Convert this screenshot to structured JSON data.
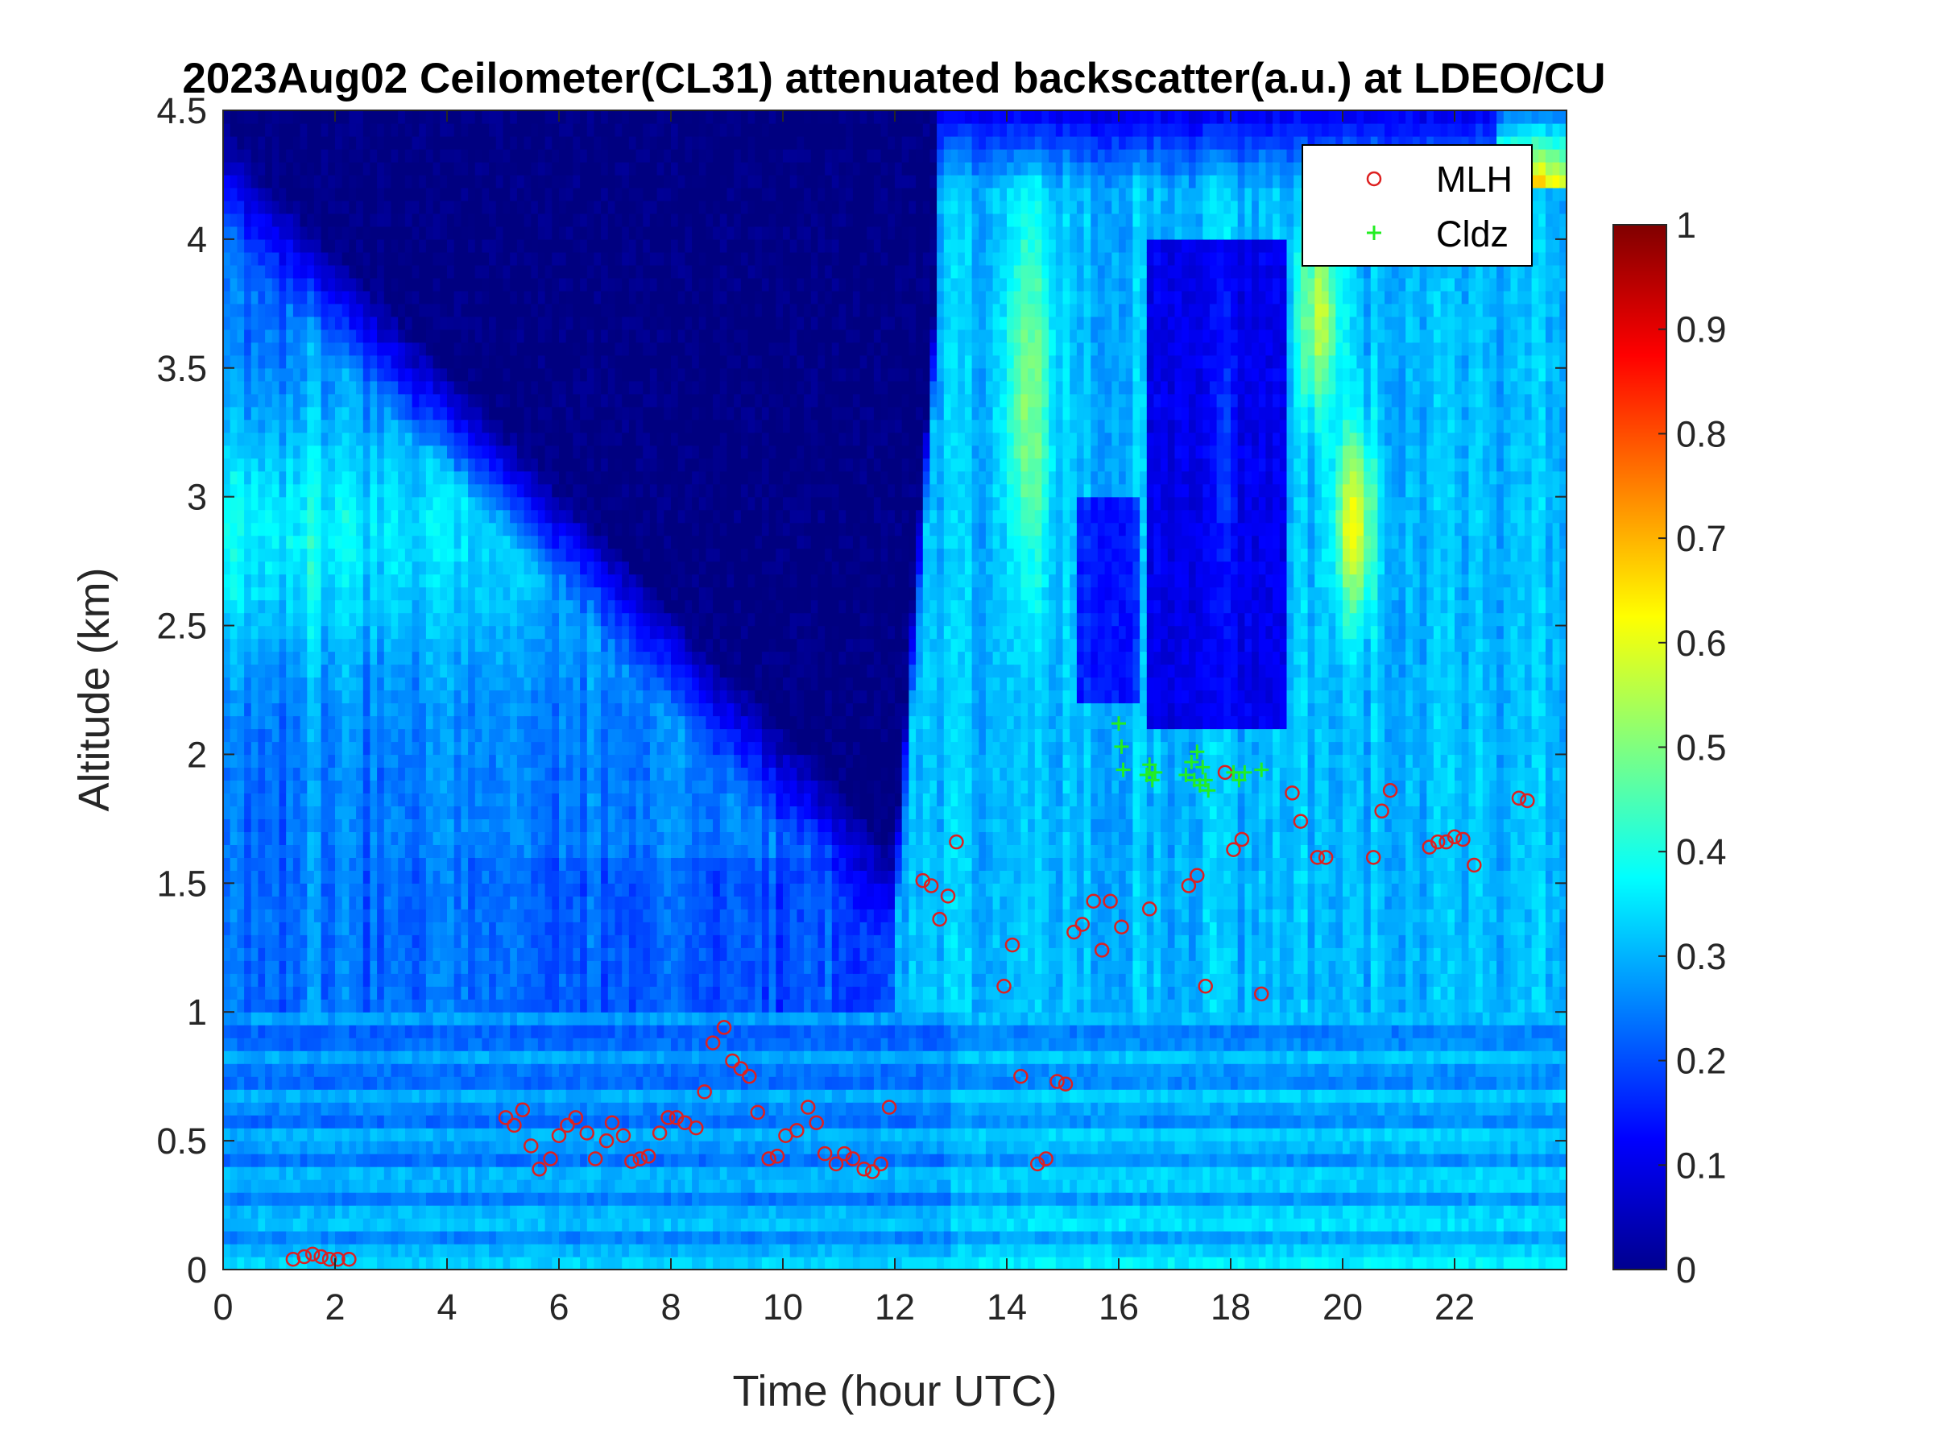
{
  "chart_data": {
    "type": "heatmap",
    "title": "2023Aug02 Ceilometer(CL31) attenuated backscatter(a.u.) at LDEO/CU",
    "xlabel": "Time (hour UTC)",
    "ylabel": "Altitude (km)",
    "xlim": [
      0,
      24
    ],
    "ylim": [
      0,
      4.5
    ],
    "x_ticks": [
      "0",
      "2",
      "4",
      "6",
      "8",
      "10",
      "12",
      "14",
      "16",
      "18",
      "20",
      "22"
    ],
    "y_ticks": [
      "0",
      "0.5",
      "1",
      "1.5",
      "2",
      "2.5",
      "3",
      "3.5",
      "4",
      "4.5"
    ],
    "colormap": "jet",
    "clim": [
      0,
      1
    ],
    "colorbar_ticks": [
      "0",
      "0.1",
      "0.2",
      "0.3",
      "0.4",
      "0.5",
      "0.6",
      "0.7",
      "0.8",
      "0.9",
      "1"
    ],
    "grid": false,
    "legend_position": "top-right",
    "colors": {
      "MLH": "#dd2020",
      "Cldz": "#22ee22"
    },
    "series": [
      {
        "name": "MLH",
        "marker": "circle",
        "points": [
          [
            1.25,
            0.04
          ],
          [
            1.45,
            0.05
          ],
          [
            1.6,
            0.06
          ],
          [
            1.75,
            0.05
          ],
          [
            1.9,
            0.04
          ],
          [
            2.05,
            0.04
          ],
          [
            2.25,
            0.04
          ],
          [
            5.05,
            0.59
          ],
          [
            5.2,
            0.56
          ],
          [
            5.35,
            0.62
          ],
          [
            5.5,
            0.48
          ],
          [
            5.65,
            0.39
          ],
          [
            5.85,
            0.43
          ],
          [
            6.0,
            0.52
          ],
          [
            6.15,
            0.56
          ],
          [
            6.3,
            0.59
          ],
          [
            6.5,
            0.53
          ],
          [
            6.65,
            0.43
          ],
          [
            6.85,
            0.5
          ],
          [
            6.95,
            0.57
          ],
          [
            7.15,
            0.52
          ],
          [
            7.3,
            0.42
          ],
          [
            7.45,
            0.43
          ],
          [
            7.6,
            0.44
          ],
          [
            7.8,
            0.53
          ],
          [
            7.95,
            0.59
          ],
          [
            8.1,
            0.59
          ],
          [
            8.25,
            0.57
          ],
          [
            8.45,
            0.55
          ],
          [
            8.6,
            0.69
          ],
          [
            8.75,
            0.88
          ],
          [
            8.95,
            0.94
          ],
          [
            9.1,
            0.81
          ],
          [
            9.25,
            0.78
          ],
          [
            9.4,
            0.75
          ],
          [
            9.55,
            0.61
          ],
          [
            9.75,
            0.43
          ],
          [
            9.9,
            0.44
          ],
          [
            10.05,
            0.52
          ],
          [
            10.25,
            0.54
          ],
          [
            10.45,
            0.63
          ],
          [
            10.6,
            0.57
          ],
          [
            10.75,
            0.45
          ],
          [
            10.95,
            0.41
          ],
          [
            11.1,
            0.45
          ],
          [
            11.25,
            0.43
          ],
          [
            11.45,
            0.39
          ],
          [
            11.6,
            0.38
          ],
          [
            11.75,
            0.41
          ],
          [
            11.9,
            0.63
          ],
          [
            12.5,
            1.51
          ],
          [
            12.65,
            1.49
          ],
          [
            12.8,
            1.36
          ],
          [
            12.95,
            1.45
          ],
          [
            13.1,
            1.66
          ],
          [
            13.95,
            1.1
          ],
          [
            14.1,
            1.26
          ],
          [
            14.25,
            0.75
          ],
          [
            14.55,
            0.41
          ],
          [
            14.7,
            0.43
          ],
          [
            14.9,
            0.73
          ],
          [
            15.05,
            0.72
          ],
          [
            15.2,
            1.31
          ],
          [
            15.35,
            1.34
          ],
          [
            15.55,
            1.43
          ],
          [
            15.7,
            1.24
          ],
          [
            15.85,
            1.43
          ],
          [
            16.05,
            1.33
          ],
          [
            16.55,
            1.4
          ],
          [
            17.25,
            1.49
          ],
          [
            17.4,
            1.53
          ],
          [
            17.55,
            1.1
          ],
          [
            17.9,
            1.93
          ],
          [
            18.05,
            1.63
          ],
          [
            18.2,
            1.67
          ],
          [
            18.55,
            1.07
          ],
          [
            19.1,
            1.85
          ],
          [
            19.25,
            1.74
          ],
          [
            19.55,
            1.6
          ],
          [
            19.7,
            1.6
          ],
          [
            20.55,
            1.6
          ],
          [
            20.7,
            1.78
          ],
          [
            20.85,
            1.86
          ],
          [
            21.55,
            1.64
          ],
          [
            21.7,
            1.66
          ],
          [
            21.85,
            1.66
          ],
          [
            22.0,
            1.68
          ],
          [
            22.15,
            1.67
          ],
          [
            22.35,
            1.57
          ],
          [
            23.15,
            1.83
          ],
          [
            23.3,
            1.82
          ]
        ]
      },
      {
        "name": "Cldz",
        "marker": "plus",
        "points": [
          [
            16.0,
            2.12
          ],
          [
            16.05,
            2.03
          ],
          [
            16.08,
            1.94
          ],
          [
            16.5,
            1.92
          ],
          [
            16.55,
            1.96
          ],
          [
            16.6,
            1.9
          ],
          [
            16.65,
            1.93
          ],
          [
            17.2,
            1.92
          ],
          [
            17.3,
            1.97
          ],
          [
            17.35,
            1.9
          ],
          [
            17.4,
            2.01
          ],
          [
            17.45,
            1.88
          ],
          [
            17.5,
            1.95
          ],
          [
            17.55,
            1.9
          ],
          [
            17.6,
            1.86
          ],
          [
            18.05,
            1.93
          ],
          [
            18.15,
            1.9
          ],
          [
            18.25,
            1.93
          ],
          [
            18.55,
            1.94
          ]
        ]
      }
    ]
  }
}
